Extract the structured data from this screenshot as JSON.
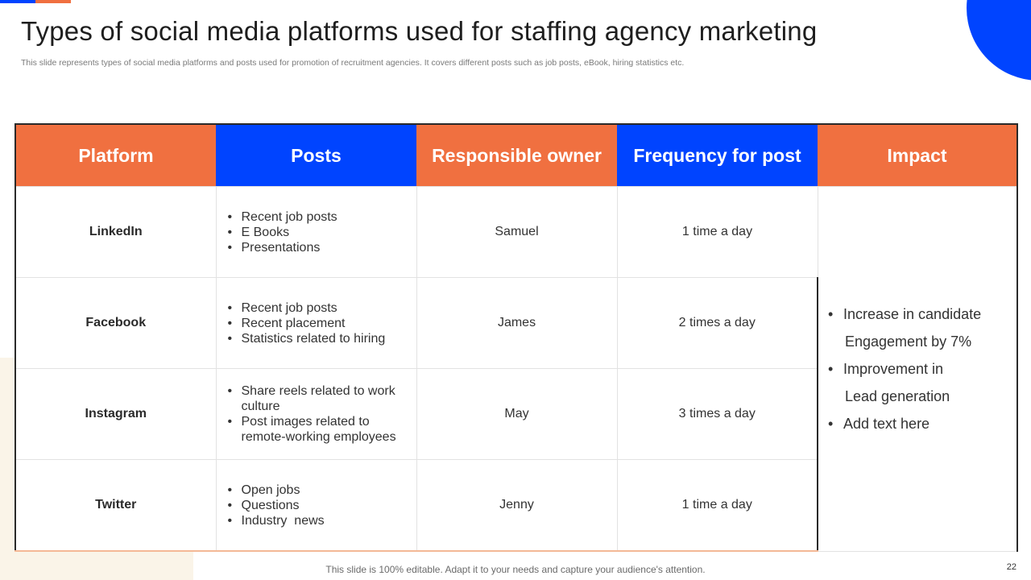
{
  "title": "Types of social media platforms used for staffing agency marketing",
  "subtitle": "This slide represents types of social media platforms and posts used for promotion of recruitment agencies. It covers different posts such as job posts, eBook, hiring statistics etc.",
  "colors": {
    "orange": "#f07040",
    "blue": "#0044ff",
    "cream": "#faf4e8"
  },
  "table": {
    "headers": [
      {
        "text": "Platform",
        "color": "orange"
      },
      {
        "text": "Posts",
        "color": "blue"
      },
      {
        "text": "Responsible owner",
        "color": "orange"
      },
      {
        "text": "Frequency for post",
        "color": "blue"
      },
      {
        "text": "Impact",
        "color": "orange"
      }
    ],
    "rows": [
      {
        "platform": "LinkedIn",
        "posts": [
          "Recent job posts",
          "E Books",
          "Presentations"
        ],
        "owner": "Samuel",
        "frequency": "1 time a day"
      },
      {
        "platform": "Facebook",
        "posts": [
          "Recent job posts",
          "Recent placement",
          "Statistics related to hiring"
        ],
        "owner": "James",
        "frequency": "2 times a day"
      },
      {
        "platform": "Instagram",
        "posts": [
          "Share reels related to work culture",
          "Post images related to remote-working employees"
        ],
        "owner": "May",
        "frequency": "3 times a day"
      },
      {
        "platform": "Twitter",
        "posts": [
          "Open jobs",
          "Questions",
          "Industry  news"
        ],
        "owner": "Jenny",
        "frequency": "1 time a day"
      }
    ],
    "impact": [
      {
        "line1": "Increase in candidate",
        "line2": "Engagement by 7%"
      },
      {
        "line1": "Improvement in",
        "line2": "Lead generation"
      },
      {
        "line1": "Add text here",
        "line2": ""
      }
    ]
  },
  "footer_note": "This slide is 100% editable. Adapt it to your needs and capture your audience's attention.",
  "page_number": "22"
}
